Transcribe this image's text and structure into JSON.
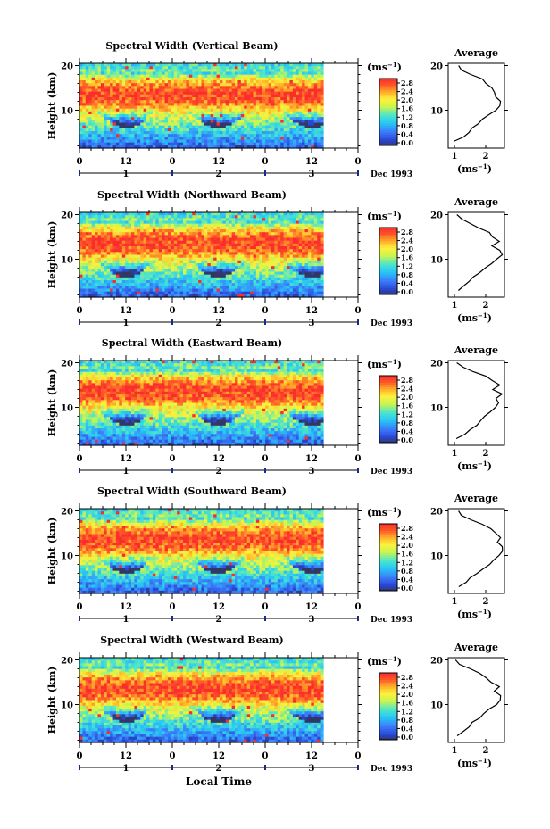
{
  "figure": {
    "x_axis_title": "Local Time",
    "month_label": "Dec 1993",
    "average_title": "Average",
    "unit_label": "(ms",
    "unit_exp": "−1",
    "unit_close": ")"
  },
  "chart_data": [
    {
      "type": "heatmap",
      "title": "Spectral Width (Vertical Beam)",
      "ylabel": "Height (km)",
      "xlabel": "Local Time",
      "x_ticks": [
        "0",
        "12",
        "0",
        "12",
        "0",
        "12",
        "0"
      ],
      "x_range_hours": [
        0,
        72
      ],
      "data_extent_hours": 63,
      "day_labels": [
        "1",
        "2",
        "3"
      ],
      "date_label": "Dec 1993",
      "y_ticks": [
        10,
        20
      ],
      "ylim": [
        1.5,
        20.5
      ],
      "colorbar": {
        "unit": "ms^-1",
        "ticks": [
          "0.0",
          "0.4",
          "0.8",
          "1.2",
          "1.6",
          "2.0",
          "2.4",
          "2.8"
        ]
      },
      "average_profile": {
        "title": "Average",
        "xlabel": "(ms^-1)",
        "x_ticks": [
          "1",
          "2"
        ],
        "xlim": [
          0.8,
          2.6
        ],
        "heights": [
          3,
          4,
          5,
          6,
          7,
          8,
          9,
          10,
          11,
          12,
          13,
          14,
          15,
          16,
          17,
          18,
          19,
          20
        ],
        "values": [
          1.0,
          1.3,
          1.45,
          1.6,
          1.75,
          1.9,
          2.1,
          2.3,
          2.45,
          2.5,
          2.35,
          2.3,
          2.2,
          2.0,
          1.9,
          1.5,
          1.25,
          1.1
        ]
      }
    },
    {
      "type": "heatmap",
      "title": "Spectral Width (Northward Beam)",
      "ylabel": "Height (km)",
      "xlabel": "Local Time",
      "x_ticks": [
        "0",
        "12",
        "0",
        "12",
        "0",
        "12",
        "0"
      ],
      "x_range_hours": [
        0,
        72
      ],
      "data_extent_hours": 63,
      "day_labels": [
        "1",
        "2",
        "3"
      ],
      "date_label": "Dec 1993",
      "y_ticks": [
        10,
        20
      ],
      "ylim": [
        1.5,
        20.5
      ],
      "colorbar": {
        "unit": "ms^-1",
        "ticks": [
          "0.0",
          "0.4",
          "0.8",
          "1.2",
          "1.6",
          "2.0",
          "2.4",
          "2.8"
        ]
      },
      "average_profile": {
        "title": "Average",
        "xlabel": "(ms^-1)",
        "x_ticks": [
          "1",
          "2"
        ],
        "xlim": [
          0.8,
          2.6
        ],
        "heights": [
          3,
          4,
          5,
          6,
          7,
          8,
          9,
          10,
          11,
          12,
          13,
          14,
          15,
          16,
          17,
          18,
          19,
          20
        ],
        "values": [
          1.1,
          1.3,
          1.45,
          1.6,
          1.8,
          2.0,
          2.2,
          2.35,
          2.5,
          2.45,
          2.2,
          2.45,
          2.2,
          2.1,
          1.8,
          1.5,
          1.2,
          1.05
        ]
      }
    },
    {
      "type": "heatmap",
      "title": "Spectral Width (Eastward Beam)",
      "ylabel": "Height (km)",
      "xlabel": "Local Time",
      "x_ticks": [
        "0",
        "12",
        "0",
        "12",
        "0",
        "12",
        "0"
      ],
      "x_range_hours": [
        0,
        72
      ],
      "data_extent_hours": 63,
      "day_labels": [
        "1",
        "2",
        "3"
      ],
      "date_label": "Dec 1993",
      "y_ticks": [
        10,
        20
      ],
      "ylim": [
        1.5,
        20.5
      ],
      "colorbar": {
        "unit": "ms^-1",
        "ticks": [
          "0.0",
          "0.4",
          "0.8",
          "1.2",
          "1.6",
          "2.0",
          "2.4",
          "2.8"
        ]
      },
      "average_profile": {
        "title": "Average",
        "xlabel": "(ms^-1)",
        "x_ticks": [
          "1",
          "2"
        ],
        "xlim": [
          0.8,
          2.6
        ],
        "heights": [
          3,
          4,
          5,
          6,
          7,
          8,
          9,
          10,
          11,
          12,
          13,
          14,
          15,
          16,
          17,
          18,
          19,
          20
        ],
        "values": [
          1.1,
          1.35,
          1.5,
          1.7,
          1.85,
          2.0,
          2.15,
          2.3,
          2.4,
          2.3,
          2.5,
          2.2,
          2.45,
          2.2,
          2.0,
          1.6,
          1.25,
          1.1
        ]
      }
    },
    {
      "type": "heatmap",
      "title": "Spectral Width (Southward Beam)",
      "ylabel": "Height (km)",
      "xlabel": "Local Time",
      "x_ticks": [
        "0",
        "12",
        "0",
        "12",
        "0",
        "12",
        "0"
      ],
      "x_range_hours": [
        0,
        72
      ],
      "data_extent_hours": 63,
      "day_labels": [
        "1",
        "2",
        "3"
      ],
      "date_label": "Dec 1993",
      "y_ticks": [
        10,
        20
      ],
      "ylim": [
        1.5,
        20.5
      ],
      "colorbar": {
        "unit": "ms^-1",
        "ticks": [
          "0.0",
          "0.4",
          "0.8",
          "1.2",
          "1.6",
          "2.0",
          "2.4",
          "2.8"
        ]
      },
      "average_profile": {
        "title": "Average",
        "xlabel": "(ms^-1)",
        "x_ticks": [
          "1",
          "2"
        ],
        "xlim": [
          0.8,
          2.6
        ],
        "heights": [
          3,
          4,
          5,
          6,
          7,
          8,
          9,
          10,
          11,
          12,
          13,
          14,
          15,
          16,
          17,
          18,
          19,
          20
        ],
        "values": [
          1.15,
          1.35,
          1.5,
          1.7,
          1.9,
          2.1,
          2.25,
          2.4,
          2.5,
          2.55,
          2.4,
          2.5,
          2.3,
          2.2,
          1.9,
          1.55,
          1.25,
          1.1
        ]
      }
    },
    {
      "type": "heatmap",
      "title": "Spectral Width (Westward Beam)",
      "ylabel": "Height (km)",
      "xlabel": "Local Time",
      "x_ticks": [
        "0",
        "12",
        "0",
        "12",
        "0",
        "12",
        "0"
      ],
      "x_range_hours": [
        0,
        72
      ],
      "data_extent_hours": 63,
      "day_labels": [
        "1",
        "2",
        "3"
      ],
      "date_label": "Dec 1993",
      "y_ticks": [
        10,
        20
      ],
      "ylim": [
        1.5,
        20.5
      ],
      "colorbar": {
        "unit": "ms^-1",
        "ticks": [
          "0.0",
          "0.4",
          "0.8",
          "1.2",
          "1.6",
          "2.0",
          "2.4",
          "2.8"
        ]
      },
      "average_profile": {
        "title": "Average",
        "xlabel": "(ms^-1)",
        "x_ticks": [
          "1",
          "2"
        ],
        "xlim": [
          0.8,
          2.6
        ],
        "heights": [
          3,
          4,
          5,
          6,
          7,
          8,
          9,
          10,
          11,
          12,
          13,
          14,
          15,
          16,
          17,
          18,
          19,
          20
        ],
        "values": [
          1.1,
          1.3,
          1.45,
          1.6,
          1.8,
          1.95,
          2.15,
          2.35,
          2.45,
          2.5,
          2.3,
          2.45,
          2.2,
          2.0,
          1.8,
          1.5,
          1.2,
          1.05
        ]
      }
    }
  ]
}
